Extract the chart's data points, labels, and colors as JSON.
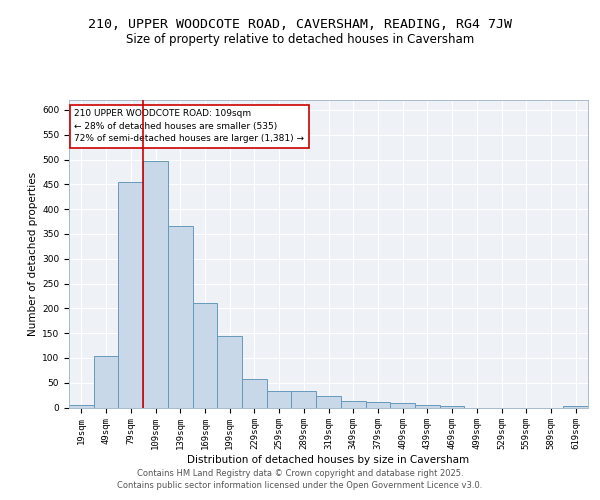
{
  "title_line1": "210, UPPER WOODCOTE ROAD, CAVERSHAM, READING, RG4 7JW",
  "title_line2": "Size of property relative to detached houses in Caversham",
  "xlabel": "Distribution of detached houses by size in Caversham",
  "ylabel": "Number of detached properties",
  "bins": [
    "19sqm",
    "49sqm",
    "79sqm",
    "109sqm",
    "139sqm",
    "169sqm",
    "199sqm",
    "229sqm",
    "259sqm",
    "289sqm",
    "319sqm",
    "349sqm",
    "379sqm",
    "409sqm",
    "439sqm",
    "469sqm",
    "499sqm",
    "529sqm",
    "559sqm",
    "589sqm",
    "619sqm"
  ],
  "values": [
    6,
    103,
    455,
    497,
    366,
    210,
    145,
    57,
    33,
    33,
    24,
    13,
    12,
    9,
    6,
    4,
    0,
    0,
    0,
    0,
    4
  ],
  "bar_color": "#c8d8e8",
  "bar_edge_color": "#6699bb",
  "vline_color": "#cc0000",
  "annotation_text": "210 UPPER WOODCOTE ROAD: 109sqm\n← 28% of detached houses are smaller (535)\n72% of semi-detached houses are larger (1,381) →",
  "annotation_box_color": "#ffffff",
  "annotation_box_edge": "#cc0000",
  "ylim": [
    0,
    620
  ],
  "yticks": [
    0,
    50,
    100,
    150,
    200,
    250,
    300,
    350,
    400,
    450,
    500,
    550,
    600
  ],
  "background_color": "#eef2f7",
  "grid_color": "#ffffff",
  "footer_text": "Contains HM Land Registry data © Crown copyright and database right 2025.\nContains public sector information licensed under the Open Government Licence v3.0.",
  "title_fontsize": 9.5,
  "subtitle_fontsize": 8.5,
  "axis_label_fontsize": 7.5,
  "tick_fontsize": 6.5,
  "footer_fontsize": 6.0
}
